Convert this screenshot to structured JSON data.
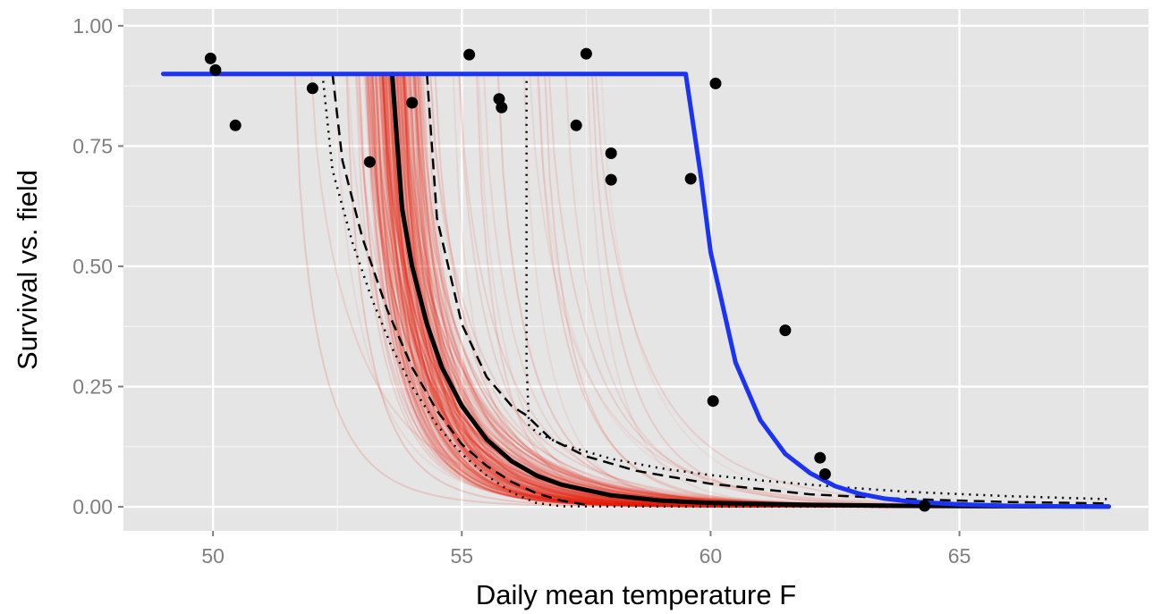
{
  "chart_data": {
    "type": "line",
    "title": "",
    "xlabel": "Daily mean temperature F",
    "ylabel": "Survival vs. field",
    "xlim": [
      48.2,
      68.8
    ],
    "ylim": [
      -0.05,
      1.035
    ],
    "x_ticks": [
      50,
      55,
      60,
      65
    ],
    "x_tick_labels": [
      "50",
      "55",
      "60",
      "65"
    ],
    "y_ticks": [
      0,
      0.25,
      0.5,
      0.75,
      1
    ],
    "y_tick_labels": [
      "0.00",
      "0.25",
      "0.50",
      "0.75",
      "1.00"
    ],
    "grid": true,
    "legend": "none",
    "colors": {
      "panel": "#e5e5e5",
      "grid": "#ffffff",
      "ensemble": "#e8200c",
      "fit": "#000000",
      "field": "#1a33f5",
      "points": "#000000"
    },
    "series": [
      {
        "style": "thick blue",
        "x": [
          49.0,
          50,
          51,
          52,
          53,
          54,
          55,
          56,
          57,
          58,
          59,
          59.5,
          59.8,
          60.0,
          60.5,
          61.0,
          61.5,
          62.0,
          62.5,
          63.0,
          63.5,
          64.0,
          65.0,
          66.0,
          67.0,
          68.0
        ],
        "y": [
          0.9,
          0.9,
          0.9,
          0.9,
          0.9,
          0.9,
          0.9,
          0.9,
          0.9,
          0.9,
          0.9,
          0.9,
          0.69,
          0.53,
          0.3,
          0.18,
          0.11,
          0.07,
          0.043,
          0.027,
          0.017,
          0.011,
          0.005,
          0.002,
          0.001,
          0.0005
        ]
      },
      {
        "style": "thick black",
        "x": [
          53.6,
          53.8,
          54.0,
          54.3,
          54.6,
          55.0,
          55.5,
          56.0,
          56.5,
          57.0,
          58.0,
          59.0,
          60.0,
          62.0,
          64.0,
          66.0,
          68.0
        ],
        "y": [
          0.9,
          0.62,
          0.5,
          0.38,
          0.29,
          0.21,
          0.14,
          0.095,
          0.065,
          0.046,
          0.024,
          0.013,
          0.008,
          0.004,
          0.002,
          0.0012,
          0.0008
        ]
      },
      {
        "style": "dashed black",
        "x": [
          52.4,
          52.6,
          53.0,
          53.5,
          54.0,
          54.5,
          55.0,
          55.5,
          56.0,
          56.5,
          57.0,
          57.5
        ],
        "y": [
          0.9,
          0.72,
          0.56,
          0.41,
          0.29,
          0.2,
          0.13,
          0.085,
          0.052,
          0.028,
          0.013,
          0.004
        ]
      },
      {
        "style": "dashed black",
        "x": [
          54.3,
          54.5,
          55.0,
          55.5,
          56.0,
          56.3,
          56.8,
          57.5,
          58.5,
          60.0,
          62.0,
          64.0,
          66.0,
          68.0
        ],
        "y": [
          0.9,
          0.6,
          0.38,
          0.27,
          0.21,
          0.19,
          0.14,
          0.105,
          0.075,
          0.048,
          0.026,
          0.016,
          0.01,
          0.007
        ]
      },
      {
        "style": "dotted black",
        "x": [
          52.2,
          52.4,
          52.8,
          53.2,
          53.6,
          54.0,
          54.5,
          55.0,
          55.5,
          56.0,
          56.5,
          57.0,
          59.0,
          62.0,
          65.0,
          68.0
        ],
        "y": [
          0.9,
          0.7,
          0.55,
          0.43,
          0.33,
          0.25,
          0.17,
          0.11,
          0.065,
          0.03,
          0.008,
          0.001,
          0.0005,
          0.0003,
          0.0002,
          0.0001
        ]
      },
      {
        "style": "dotted black",
        "x": [
          56.3,
          56.3,
          56.35,
          56.5,
          57.0,
          57.5,
          58.0,
          59.0,
          60.0,
          61.0,
          62.0,
          63.0,
          64.0,
          66.0,
          68.0
        ],
        "y": [
          0.9,
          0.3,
          0.17,
          0.155,
          0.13,
          0.115,
          0.1,
          0.08,
          0.066,
          0.055,
          0.046,
          0.038,
          0.031,
          0.022,
          0.016
        ]
      }
    ],
    "points": {
      "x": [
        49.95,
        50.05,
        50.45,
        52.0,
        53.15,
        54.0,
        55.15,
        55.75,
        55.8,
        57.3,
        57.5,
        58.0,
        58.0,
        59.6,
        60.1,
        60.05,
        61.5,
        62.2,
        62.3,
        64.3
      ],
      "y": [
        0.932,
        0.908,
        0.793,
        0.87,
        0.717,
        0.84,
        0.94,
        0.848,
        0.83,
        0.793,
        0.942,
        0.735,
        0.68,
        0.682,
        0.88,
        0.22,
        0.367,
        0.102,
        0.068,
        0.002
      ]
    }
  }
}
